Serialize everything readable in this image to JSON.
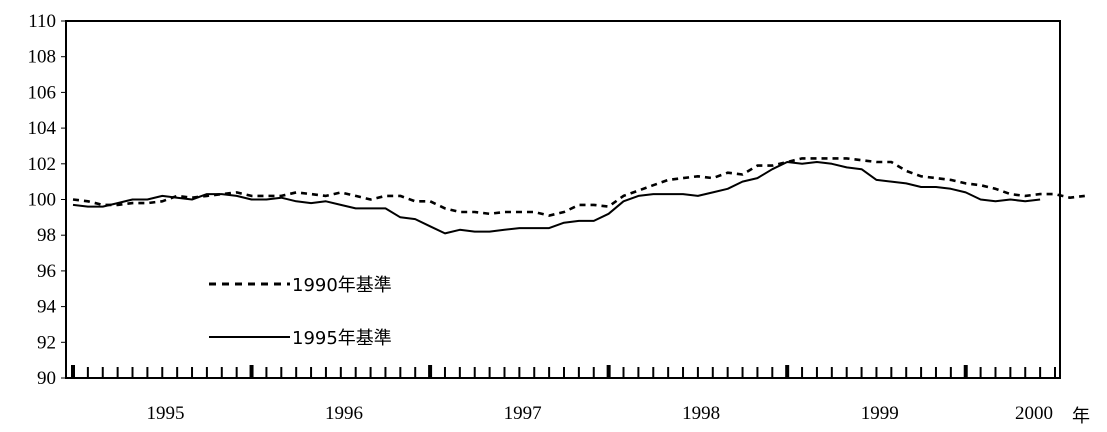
{
  "chart_data": {
    "type": "line",
    "x_unit_label": "年",
    "ylim": [
      90,
      110
    ],
    "y_ticks": [
      90,
      92,
      94,
      96,
      98,
      100,
      102,
      104,
      106,
      108,
      110
    ],
    "x_tick_labels": [
      "1995",
      "1996",
      "1997",
      "1998",
      "1999",
      "2000"
    ],
    "grid": false,
    "legend_position": "lower-left",
    "series": [
      {
        "name": "1990年基準",
        "style": "dashed",
        "color": "#000000",
        "values": [
          100.0,
          99.9,
          99.7,
          99.7,
          99.8,
          99.8,
          99.9,
          100.2,
          100.1,
          100.2,
          100.3,
          100.4,
          100.2,
          100.2,
          100.2,
          100.4,
          100.3,
          100.2,
          100.4,
          100.2,
          100.0,
          100.2,
          100.2,
          99.9,
          99.9,
          99.5,
          99.3,
          99.3,
          99.2,
          99.3,
          99.3,
          99.3,
          99.1,
          99.3,
          99.7,
          99.7,
          99.6,
          100.2,
          100.5,
          100.8,
          101.1,
          101.2,
          101.3,
          101.2,
          101.5,
          101.4,
          101.9,
          101.9,
          102.1,
          102.3,
          102.3,
          102.3,
          102.3,
          102.2,
          102.1,
          102.1,
          101.6,
          101.3,
          101.2,
          101.1,
          100.9,
          100.8,
          100.6,
          100.3,
          100.2,
          100.3,
          100.3,
          100.1,
          100.2
        ]
      },
      {
        "name": "1995年基準",
        "style": "solid",
        "color": "#000000",
        "values": [
          99.7,
          99.6,
          99.6,
          99.8,
          100.0,
          100.0,
          100.2,
          100.1,
          100.0,
          100.3,
          100.3,
          100.2,
          100.0,
          100.0,
          100.1,
          99.9,
          99.8,
          99.9,
          99.7,
          99.5,
          99.5,
          99.5,
          99.0,
          98.9,
          98.5,
          98.1,
          98.3,
          98.2,
          98.2,
          98.3,
          98.4,
          98.4,
          98.4,
          98.7,
          98.8,
          98.8,
          99.2,
          99.9,
          100.2,
          100.3,
          100.3,
          100.3,
          100.2,
          100.4,
          100.6,
          101.0,
          101.2,
          101.7,
          102.1,
          102.0,
          102.1,
          102.0,
          101.8,
          101.7,
          101.1,
          101.0,
          100.9,
          100.7,
          100.7,
          100.6,
          100.4,
          100.0,
          99.9,
          100.0,
          99.9,
          100.0
        ]
      }
    ]
  }
}
